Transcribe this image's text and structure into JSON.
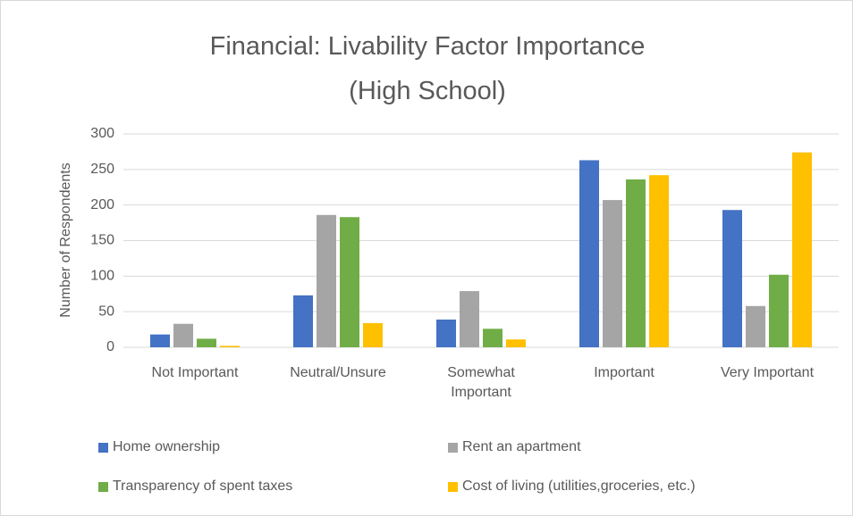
{
  "chart_data": {
    "type": "bar",
    "title": "Financial: Livability Factor Importance (High School)",
    "y_label": "Number of Respondents",
    "categories": [
      "Not Important",
      "Neutral/Unsure",
      "Somewhat Important",
      "Important",
      "Very Important"
    ],
    "series": [
      {
        "name": "Home ownership",
        "color": "#4472c4",
        "values": [
          18,
          73,
          39,
          263,
          193
        ]
      },
      {
        "name": "Rent an apartment",
        "color": "#a5a5a5",
        "values": [
          33,
          186,
          79,
          207,
          58
        ]
      },
      {
        "name": "Transparency of spent taxes",
        "color": "#70ad47",
        "values": [
          12,
          183,
          26,
          236,
          102
        ]
      },
      {
        "name": "Cost of living (utilities,groceries, etc.)",
        "color": "#ffc000",
        "values": [
          2,
          34,
          11,
          242,
          274
        ]
      }
    ],
    "ylim": [
      0,
      300
    ],
    "yticks": [
      0,
      50,
      100,
      150,
      200,
      250,
      300
    ],
    "grid": true,
    "legend": "bottom"
  }
}
